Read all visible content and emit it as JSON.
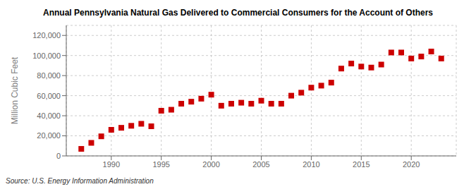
{
  "chart_data": {
    "type": "scatter",
    "title": "Annual Pennsylvania Natural Gas Delivered to Commercial Consumers for the Account of Others",
    "ylabel": "Million Cubic Feet",
    "annotations": [
      "Source: U.S. Energy Information Administration"
    ],
    "x": [
      1987,
      1988,
      1989,
      1990,
      1991,
      1992,
      1993,
      1994,
      1995,
      1996,
      1997,
      1998,
      1999,
      2000,
      2001,
      2002,
      2003,
      2004,
      2005,
      2006,
      2007,
      2008,
      2009,
      2010,
      2011,
      2012,
      2013,
      2014,
      2015,
      2016,
      2017,
      2018,
      2019,
      2020,
      2021,
      2022,
      2023
    ],
    "values": [
      7000,
      13000,
      19500,
      26000,
      28000,
      30000,
      32000,
      29500,
      45000,
      46000,
      52000,
      54000,
      57000,
      61000,
      50000,
      52000,
      53000,
      52000,
      55000,
      52000,
      52000,
      60000,
      63000,
      68000,
      70000,
      73000,
      87000,
      92000,
      89000,
      88000,
      91000,
      103000,
      103000,
      97000,
      99000,
      104000,
      97000
    ],
    "color": "#cc0000",
    "marker": "square",
    "xlim": [
      1985.5,
      2024.5
    ],
    "xticks": [
      1990,
      1995,
      2000,
      2005,
      2010,
      2015,
      2020
    ],
    "ylim": [
      0,
      130000
    ],
    "yticks": [
      0,
      {
        "value": 20000,
        "label": "20,000"
      },
      {
        "value": 40000,
        "label": "40,000"
      },
      {
        "value": 60000,
        "label": "60,000"
      },
      {
        "value": 80000,
        "label": "80,000"
      },
      {
        "value": 100000,
        "label": "100,000"
      },
      {
        "value": 120000,
        "label": "120,000"
      }
    ],
    "grid": true
  }
}
